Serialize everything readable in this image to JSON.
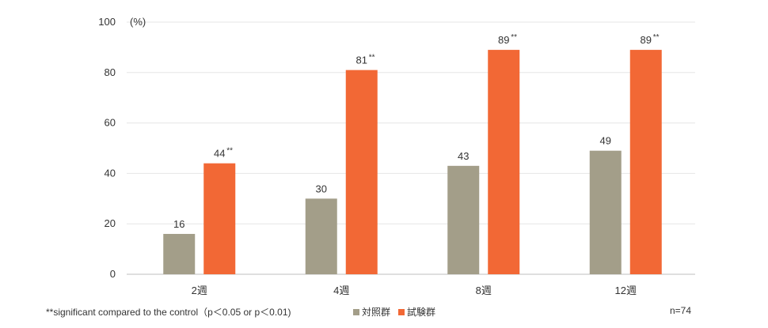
{
  "chart_data": {
    "type": "bar",
    "unit_label": "(%)",
    "categories": [
      "2週",
      "4週",
      "8週",
      "12週"
    ],
    "series": [
      {
        "name": "対照群",
        "color": "#a39e89",
        "values": [
          16,
          30,
          43,
          49
        ],
        "marks": [
          "",
          "",
          "",
          ""
        ]
      },
      {
        "name": "試験群",
        "color": "#f26835",
        "values": [
          44,
          81,
          89,
          89
        ],
        "marks": [
          "**",
          "**",
          "**",
          "**"
        ]
      }
    ],
    "ylim": [
      0,
      100
    ],
    "yticks": [
      0,
      20,
      40,
      60,
      80,
      100
    ],
    "grid": true,
    "legend_position": "bottom"
  },
  "footnote": "**significant compared to the control（p＜0.05 or p＜0.01)",
  "n_label": "n=74"
}
